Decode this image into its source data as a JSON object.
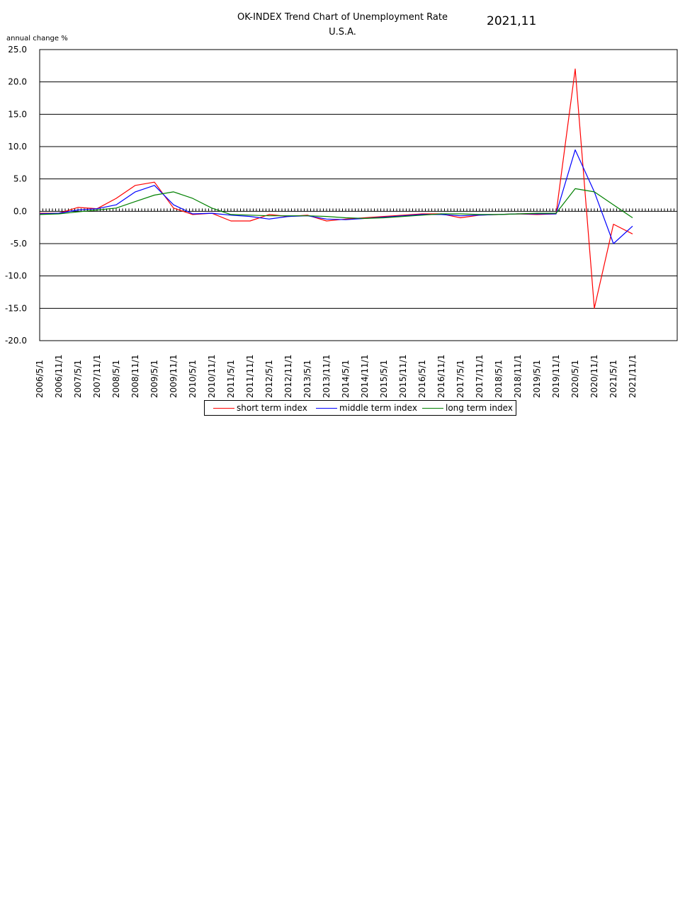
{
  "title": "OK-INDEX Trend Chart of Unemployment Rate",
  "subtitle": "U.S.A.",
  "date_label": "2021,11",
  "chart_data": {
    "type": "line",
    "title": "OK-INDEX Trend Chart of Unemployment Rate",
    "subtitle": "U.S.A.",
    "ylabel": "annual change %",
    "xlabel": "",
    "ylim": [
      -20,
      25
    ],
    "yticks": [
      "25.0",
      "20.0",
      "15.0",
      "10.0",
      "5.0",
      "0.0",
      "-5.0",
      "-10.0",
      "-15.0",
      "-20.0"
    ],
    "grid": true,
    "legend_position": "bottom",
    "x_tick_labels": [
      "2006/5/1",
      "2006/11/1",
      "2007/5/1",
      "2007/11/1",
      "2008/5/1",
      "2008/11/1",
      "2009/5/1",
      "2009/11/1",
      "2010/5/1",
      "2010/11/1",
      "2011/5/1",
      "2011/11/1",
      "2012/5/1",
      "2012/11/1",
      "2013/5/1",
      "2013/11/1",
      "2014/5/1",
      "2014/11/1",
      "2015/5/1",
      "2015/11/1",
      "2016/5/1",
      "2016/11/1",
      "2017/5/1",
      "2017/11/1",
      "2018/5/1",
      "2018/11/1",
      "2019/5/1",
      "2019/11/1",
      "2020/5/1",
      "2020/11/1",
      "2021/5/1",
      "2021/11/1"
    ],
    "x": [
      "2006/5/1",
      "2006/11/1",
      "2007/5/1",
      "2007/11/1",
      "2008/5/1",
      "2008/11/1",
      "2009/5/1",
      "2009/11/1",
      "2010/5/1",
      "2010/11/1",
      "2011/5/1",
      "2011/11/1",
      "2012/5/1",
      "2012/11/1",
      "2013/5/1",
      "2013/11/1",
      "2014/5/1",
      "2014/11/1",
      "2015/5/1",
      "2015/11/1",
      "2016/5/1",
      "2016/11/1",
      "2017/5/1",
      "2017/11/1",
      "2018/5/1",
      "2018/11/1",
      "2019/5/1",
      "2019/11/1",
      "2020/5/1",
      "2020/11/1",
      "2021/5/1",
      "2021/11/1"
    ],
    "series": [
      {
        "name": "short term index",
        "color": "#ff0000",
        "values": [
          -0.3,
          -0.3,
          0.6,
          0.4,
          2.0,
          4.0,
          4.5,
          0.5,
          -0.5,
          -0.3,
          -1.5,
          -1.5,
          -0.5,
          -0.8,
          -0.6,
          -1.5,
          -1.2,
          -1.0,
          -0.8,
          -0.6,
          -0.4,
          -0.4,
          -1.0,
          -0.6,
          -0.5,
          -0.4,
          -0.5,
          -0.4,
          22.0,
          -15.0,
          -2.0,
          -3.5
        ]
      },
      {
        "name": "middle term index",
        "color": "#0000ff",
        "values": [
          -0.4,
          -0.3,
          0.2,
          0.4,
          1.0,
          3.0,
          4.0,
          1.0,
          -0.4,
          -0.3,
          -0.6,
          -0.8,
          -1.2,
          -0.8,
          -0.7,
          -1.2,
          -1.3,
          -1.1,
          -0.9,
          -0.7,
          -0.5,
          -0.5,
          -0.7,
          -0.6,
          -0.5,
          -0.4,
          -0.4,
          -0.4,
          9.5,
          3.0,
          -5.0,
          -2.3
        ]
      },
      {
        "name": "long term index",
        "color": "#008000",
        "values": [
          -0.5,
          -0.4,
          -0.1,
          0.2,
          0.5,
          1.5,
          2.5,
          3.0,
          2.0,
          0.5,
          -0.5,
          -0.6,
          -0.7,
          -0.7,
          -0.7,
          -0.8,
          -1.0,
          -1.1,
          -1.0,
          -0.8,
          -0.6,
          -0.4,
          -0.4,
          -0.5,
          -0.5,
          -0.4,
          -0.3,
          -0.3,
          3.5,
          3.0,
          1.0,
          -1.0
        ]
      }
    ]
  },
  "legend": {
    "items": [
      {
        "label": "short term index",
        "color": "#ff0000"
      },
      {
        "label": "middle term index",
        "color": "#0000ff"
      },
      {
        "label": "long term index",
        "color": "#008000"
      }
    ]
  }
}
